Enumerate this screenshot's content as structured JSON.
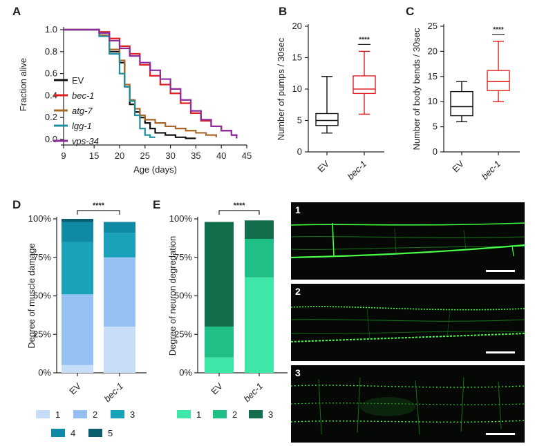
{
  "chart_data": [
    {
      "panel": "A",
      "type": "line",
      "xlabel": "Age (days)",
      "ylabel": "Fraction alive",
      "xlim": [
        9,
        45
      ],
      "ylim": [
        0,
        1.0
      ],
      "xticks": [
        "9",
        "15",
        "20",
        "25",
        "30",
        "35",
        "40",
        "45"
      ],
      "yticks": [
        "0.0",
        "0.2",
        "0.4",
        "0.6",
        "0.8",
        "1.0"
      ],
      "step": true,
      "legend_position": "bottom-left",
      "series": [
        {
          "name": "EV",
          "italic": false,
          "color": "#111111",
          "x": [
            9,
            13,
            16,
            18,
            20,
            21,
            22,
            23,
            24,
            25,
            26,
            27,
            29,
            31,
            33,
            35
          ],
          "y": [
            1.0,
            1.0,
            0.95,
            0.8,
            0.7,
            0.48,
            0.32,
            0.25,
            0.2,
            0.15,
            0.1,
            0.06,
            0.04,
            0.02,
            0.01,
            0.01
          ]
        },
        {
          "name": "bec-1",
          "italic": true,
          "color": "#e02020",
          "x": [
            9,
            14,
            16,
            18,
            20,
            22,
            24,
            26,
            28,
            30,
            32,
            34,
            36,
            38,
            40,
            42,
            43
          ],
          "y": [
            1.0,
            1.0,
            0.98,
            0.92,
            0.85,
            0.78,
            0.68,
            0.58,
            0.5,
            0.42,
            0.33,
            0.24,
            0.17,
            0.12,
            0.08,
            0.04,
            0.01
          ]
        },
        {
          "name": "atg-7",
          "italic": true,
          "color": "#a8672a",
          "x": [
            9,
            14,
            16,
            18,
            20,
            21,
            22,
            23,
            24,
            25,
            27,
            29,
            31,
            33,
            35,
            37,
            39
          ],
          "y": [
            1.0,
            1.0,
            0.95,
            0.82,
            0.72,
            0.5,
            0.36,
            0.28,
            0.22,
            0.18,
            0.15,
            0.12,
            0.1,
            0.08,
            0.06,
            0.04,
            0.02
          ]
        },
        {
          "name": "lgg-1",
          "italic": true,
          "color": "#1f8fa0",
          "x": [
            9,
            14,
            16,
            18,
            20,
            21,
            22,
            23,
            24,
            25,
            26,
            27
          ],
          "y": [
            1.0,
            1.0,
            0.94,
            0.78,
            0.6,
            0.48,
            0.35,
            0.22,
            0.1,
            0.04,
            0.02,
            0.02
          ]
        },
        {
          "name": "vps-34",
          "italic": true,
          "color": "#8a2b9e",
          "x": [
            9,
            14,
            16,
            18,
            20,
            22,
            24,
            26,
            28,
            30,
            32,
            34,
            36,
            38,
            40,
            42,
            43
          ],
          "y": [
            1.0,
            1.0,
            0.97,
            0.9,
            0.83,
            0.76,
            0.7,
            0.63,
            0.55,
            0.46,
            0.36,
            0.26,
            0.18,
            0.12,
            0.08,
            0.04,
            0.01
          ]
        }
      ]
    },
    {
      "panel": "B",
      "type": "box",
      "ylabel": "Number of pumps / 30sec",
      "ylim": [
        0,
        20
      ],
      "yticks": [
        "0",
        "5",
        "10",
        "15",
        "20"
      ],
      "categories": [
        "EV",
        "bec-1"
      ],
      "italic_categories": [
        false,
        true
      ],
      "colors": [
        "#111111",
        "#e02020"
      ],
      "boxes": [
        {
          "min": 3,
          "q1": 4.2,
          "median": 5,
          "q3": 6.1,
          "max": 12
        },
        {
          "min": 6,
          "q1": 9.3,
          "median": 10,
          "q3": 12.1,
          "max": 16
        }
      ],
      "significance": "****"
    },
    {
      "panel": "C",
      "type": "box",
      "ylabel": "Number of body bends / 30sec",
      "ylim": [
        0,
        25
      ],
      "yticks": [
        "0",
        "5",
        "10",
        "15",
        "20",
        "25"
      ],
      "categories": [
        "EV",
        "bec-1"
      ],
      "italic_categories": [
        false,
        true
      ],
      "colors": [
        "#111111",
        "#e02020"
      ],
      "boxes": [
        {
          "min": 6,
          "q1": 7.2,
          "median": 9,
          "q3": 12,
          "max": 14
        },
        {
          "min": 10,
          "q1": 12.2,
          "median": 14,
          "q3": 16.2,
          "max": 22
        }
      ],
      "significance": "****"
    },
    {
      "panel": "D",
      "type": "bar",
      "stacked": true,
      "ylabel": "Degree of muscle damage",
      "ylim": [
        0,
        100
      ],
      "yticks": [
        "0%",
        "25%",
        "50%",
        "75%",
        "100%"
      ],
      "categories": [
        "EV",
        "bec-1"
      ],
      "italic_categories": [
        false,
        true
      ],
      "significance": "****",
      "legend_position": "bottom",
      "series": [
        {
          "name": "1",
          "color": "#c8ddf8",
          "values": [
            5,
            30
          ]
        },
        {
          "name": "2",
          "color": "#96c0f2",
          "values": [
            46,
            45
          ]
        },
        {
          "name": "3",
          "color": "#1aa2bb",
          "values": [
            34,
            16
          ]
        },
        {
          "name": "4",
          "color": "#108aa4",
          "values": [
            13,
            7
          ]
        },
        {
          "name": "5",
          "color": "#0b5e70",
          "values": [
            2,
            0
          ]
        }
      ]
    },
    {
      "panel": "E",
      "type": "bar",
      "stacked": true,
      "ylabel": "Degree of neuron degredation",
      "ylim": [
        0,
        100
      ],
      "yticks": [
        "0%",
        "25%",
        "50%",
        "75%",
        "100%"
      ],
      "categories": [
        "EV",
        "bec-1"
      ],
      "italic_categories": [
        false,
        true
      ],
      "significance": "****",
      "legend_position": "bottom",
      "series": [
        {
          "name": "1",
          "color": "#3ee6a8",
          "values": [
            10,
            62
          ]
        },
        {
          "name": "2",
          "color": "#1fbf85",
          "values": [
            20,
            25
          ]
        },
        {
          "name": "3",
          "color": "#126e4a",
          "values": [
            68,
            12
          ]
        }
      ]
    }
  ],
  "panels": {
    "micrographs": [
      {
        "label": "1"
      },
      {
        "label": "2"
      },
      {
        "label": "3"
      }
    ]
  }
}
